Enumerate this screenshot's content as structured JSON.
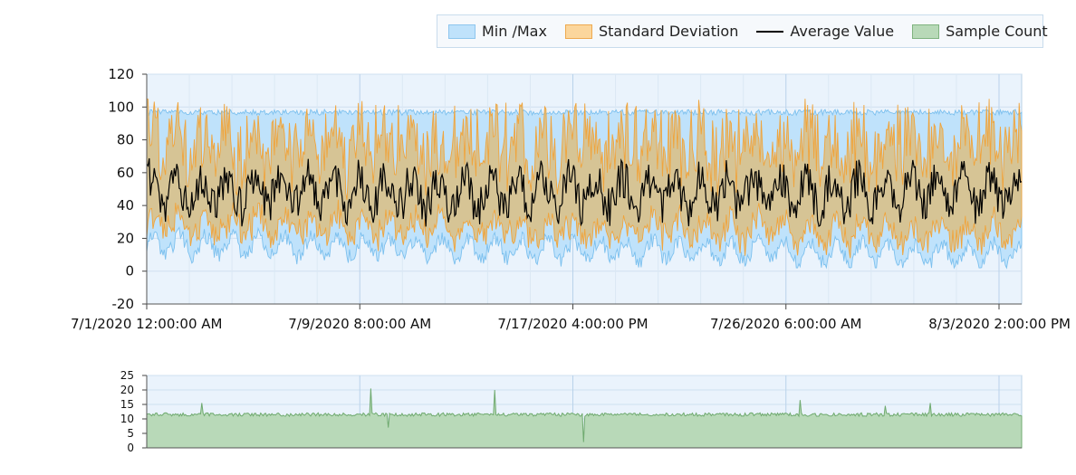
{
  "legend": {
    "items": [
      {
        "label": "Min /Max",
        "kind": "area",
        "color": "#bfe2fb",
        "border": "#8ec6ee"
      },
      {
        "label": "Standard Deviation",
        "kind": "area",
        "color": "#fbd69c",
        "border": "#eea94f"
      },
      {
        "label": "Average Value",
        "kind": "line",
        "color": "#000000"
      },
      {
        "label": "Sample Count",
        "kind": "area",
        "color": "#b8d9b8",
        "border": "#7fb37f"
      }
    ]
  },
  "colors": {
    "plot_bg": "#eaf3fc",
    "grid": "#cfe0f0",
    "minmax_fill": "#bfe2fb",
    "minmax_stroke": "#7cc0ee",
    "std_fill": "#d6c495",
    "std_stroke": "#f0a43c",
    "avg_line": "#000000",
    "count_fill": "#b8d9b8",
    "count_stroke": "#6faa6f"
  },
  "chart_data": [
    {
      "type": "area",
      "x_range": [
        "7/1/2020 12:00:00 AM",
        "8/3/2020 2:00:00 PM"
      ],
      "x_ticks": [
        "7/1/2020 12:00:00 AM",
        "7/9/2020 8:00:00 AM",
        "7/17/2020 4:00:00 PM",
        "7/26/2020 6:00:00 AM",
        "8/3/2020 2:00:00 PM"
      ],
      "ylim": [
        -20,
        120
      ],
      "y_ticks": [
        -20,
        0,
        20,
        40,
        60,
        80,
        100,
        120
      ],
      "grid": true,
      "series": [
        {
          "name": "Min /Max",
          "kind": "band",
          "typical_min": 15,
          "typical_max": 97
        },
        {
          "name": "Standard Deviation",
          "kind": "band",
          "typical_low": 25,
          "typical_high": 80
        },
        {
          "name": "Average Value",
          "kind": "line",
          "typical": 48,
          "range": [
            20,
            73
          ]
        }
      ]
    },
    {
      "type": "area",
      "x_range": [
        "7/1/2020 12:00:00 AM",
        "8/3/2020 2:00:00 PM"
      ],
      "ylim": [
        0,
        25
      ],
      "y_ticks": [
        0,
        5,
        10,
        15,
        20,
        25
      ],
      "grid": true,
      "series": [
        {
          "name": "Sample Count",
          "kind": "area",
          "baseline": 11.5,
          "spikes": [
            {
              "x": "7/3/2020 3:00:00 AM",
              "value": 15.5
            },
            {
              "x": "7/9/2020 2:00:00 PM",
              "value": 20.5
            },
            {
              "x": "7/10/2020 6:00:00 AM",
              "value": 7
            },
            {
              "x": "7/14/2020 9:00:00 AM",
              "value": 20
            },
            {
              "x": "7/17/2020 6:00:00 PM",
              "value": 2
            },
            {
              "x": "7/26/2020 2:00:00 AM",
              "value": 16.5
            },
            {
              "x": "7/29/2020 8:00:00 AM",
              "value": 14.5
            },
            {
              "x": "7/31/2020 2:00:00 AM",
              "value": 15.5
            }
          ]
        }
      ]
    }
  ]
}
